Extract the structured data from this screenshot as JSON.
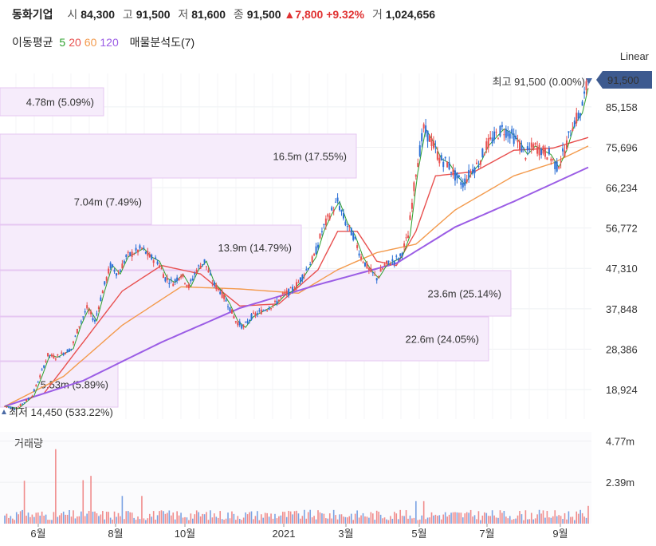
{
  "header": {
    "name": "동화기업",
    "open_label": "시",
    "open": "84,300",
    "high_label": "고",
    "high": "91,500",
    "low_label": "저",
    "low": "81,600",
    "close_label": "종",
    "close": "91,500",
    "change": "▲7,800",
    "change_pct": "+9.32%",
    "volume_label": "거",
    "volume": "1,024,656"
  },
  "ma_legend": {
    "label": "이동평균",
    "periods": [
      "5",
      "20",
      "60",
      "120"
    ],
    "colors": [
      "#2ca02c",
      "#e8504f",
      "#f39a4c",
      "#9b5de5"
    ],
    "volume_profile_label": "매물분석도(7)"
  },
  "scale_label": "Linear",
  "volume_panel_label": "거래량",
  "chart_data": {
    "type": "candlestick",
    "y_ticks": [
      "85,158",
      "75,696",
      "66,234",
      "56,772",
      "47,310",
      "37,848",
      "28,386",
      "18,924"
    ],
    "y_tick_values": [
      85158,
      75696,
      66234,
      56772,
      47310,
      37848,
      28386,
      18924
    ],
    "current_price_tag": "91,500",
    "current_price": 91500,
    "high_marker": {
      "label": "최고",
      "value": "91,500 (0.00%)"
    },
    "low_marker": {
      "label": "최저",
      "value": "14,450 (533.22%)"
    },
    "x_ticks": [
      "6월",
      "8월",
      "10월",
      "2021",
      "3월",
      "5월",
      "7월",
      "9월"
    ],
    "volume_ticks": [
      "4.77m",
      "2.39m"
    ],
    "volume_tick_values": [
      4770000,
      2390000
    ],
    "volume_profile": [
      {
        "label": "4.78m (5.09%)",
        "volume_m": 4.78,
        "pct": 5.09
      },
      {
        "label": "16.5m (17.55%)",
        "volume_m": 16.5,
        "pct": 17.55
      },
      {
        "label": "7.04m (7.49%)",
        "volume_m": 7.04,
        "pct": 7.49
      },
      {
        "label": "13.9m (14.79%)",
        "volume_m": 13.9,
        "pct": 14.79
      },
      {
        "label": "23.6m (25.14%)",
        "volume_m": 23.6,
        "pct": 25.14
      },
      {
        "label": "22.6m (24.05%)",
        "volume_m": 22.6,
        "pct": 24.05
      },
      {
        "label": "5.53m (5.89%)",
        "volume_m": 5.53,
        "pct": 5.89
      }
    ],
    "price_path": [
      [
        0,
        15000
      ],
      [
        6,
        14450
      ],
      [
        10,
        16000
      ],
      [
        14,
        17500
      ],
      [
        18,
        22000
      ],
      [
        22,
        27000
      ],
      [
        26,
        26500
      ],
      [
        30,
        27500
      ],
      [
        34,
        28500
      ],
      [
        38,
        34000
      ],
      [
        42,
        38000
      ],
      [
        46,
        35000
      ],
      [
        50,
        42000
      ],
      [
        54,
        48000
      ],
      [
        58,
        46000
      ],
      [
        62,
        50000
      ],
      [
        66,
        51000
      ],
      [
        70,
        52000
      ],
      [
        74,
        50000
      ],
      [
        78,
        49000
      ],
      [
        82,
        45000
      ],
      [
        86,
        44000
      ],
      [
        90,
        46000
      ],
      [
        94,
        43000
      ],
      [
        98,
        47000
      ],
      [
        102,
        49000
      ],
      [
        106,
        44000
      ],
      [
        110,
        42000
      ],
      [
        114,
        39000
      ],
      [
        118,
        35000
      ],
      [
        122,
        33500
      ],
      [
        126,
        36000
      ],
      [
        130,
        37000
      ],
      [
        134,
        38000
      ],
      [
        138,
        39000
      ],
      [
        142,
        41000
      ],
      [
        146,
        42000
      ],
      [
        150,
        44000
      ],
      [
        154,
        47000
      ],
      [
        158,
        50000
      ],
      [
        162,
        56000
      ],
      [
        166,
        60000
      ],
      [
        170,
        63000
      ],
      [
        174,
        58000
      ],
      [
        178,
        55000
      ],
      [
        182,
        50000
      ],
      [
        186,
        47000
      ],
      [
        190,
        45000
      ],
      [
        194,
        48000
      ],
      [
        198,
        49000
      ],
      [
        202,
        50000
      ],
      [
        206,
        55000
      ],
      [
        210,
        70000
      ],
      [
        214,
        80000
      ],
      [
        218,
        77000
      ],
      [
        222,
        73000
      ],
      [
        226,
        72000
      ],
      [
        230,
        69000
      ],
      [
        234,
        67000
      ],
      [
        238,
        70000
      ],
      [
        242,
        72000
      ],
      [
        246,
        76000
      ],
      [
        250,
        78000
      ],
      [
        254,
        80000
      ],
      [
        258,
        79000
      ],
      [
        262,
        77000
      ],
      [
        266,
        74000
      ],
      [
        270,
        76000
      ],
      [
        274,
        75000
      ],
      [
        278,
        74000
      ],
      [
        282,
        71000
      ],
      [
        286,
        75000
      ],
      [
        290,
        81000
      ],
      [
        294,
        83700
      ],
      [
        298,
        91500
      ]
    ],
    "ma_series": [
      {
        "name": "20",
        "values": [
          [
            0,
            15000
          ],
          [
            20,
            18000
          ],
          [
            40,
            30000
          ],
          [
            60,
            42000
          ],
          [
            80,
            48000
          ],
          [
            100,
            46000
          ],
          [
            120,
            38500
          ],
          [
            140,
            39000
          ],
          [
            160,
            47000
          ],
          [
            170,
            56000
          ],
          [
            180,
            56000
          ],
          [
            190,
            49000
          ],
          [
            200,
            48000
          ],
          [
            210,
            56000
          ],
          [
            220,
            69000
          ],
          [
            240,
            70000
          ],
          [
            260,
            75000
          ],
          [
            280,
            75500
          ],
          [
            298,
            78000
          ]
        ]
      },
      {
        "name": "60",
        "values": [
          [
            0,
            15000
          ],
          [
            30,
            22000
          ],
          [
            60,
            34000
          ],
          [
            90,
            43000
          ],
          [
            120,
            42500
          ],
          [
            150,
            41500
          ],
          [
            170,
            47000
          ],
          [
            190,
            51000
          ],
          [
            210,
            53000
          ],
          [
            230,
            61000
          ],
          [
            260,
            69000
          ],
          [
            280,
            72000
          ],
          [
            298,
            76000
          ]
        ]
      },
      {
        "name": "120",
        "values": [
          [
            0,
            15000
          ],
          [
            40,
            21000
          ],
          [
            80,
            30000
          ],
          [
            120,
            38000
          ],
          [
            160,
            43500
          ],
          [
            200,
            48500
          ],
          [
            230,
            57000
          ],
          [
            260,
            63000
          ],
          [
            298,
            71000
          ]
        ]
      }
    ]
  }
}
